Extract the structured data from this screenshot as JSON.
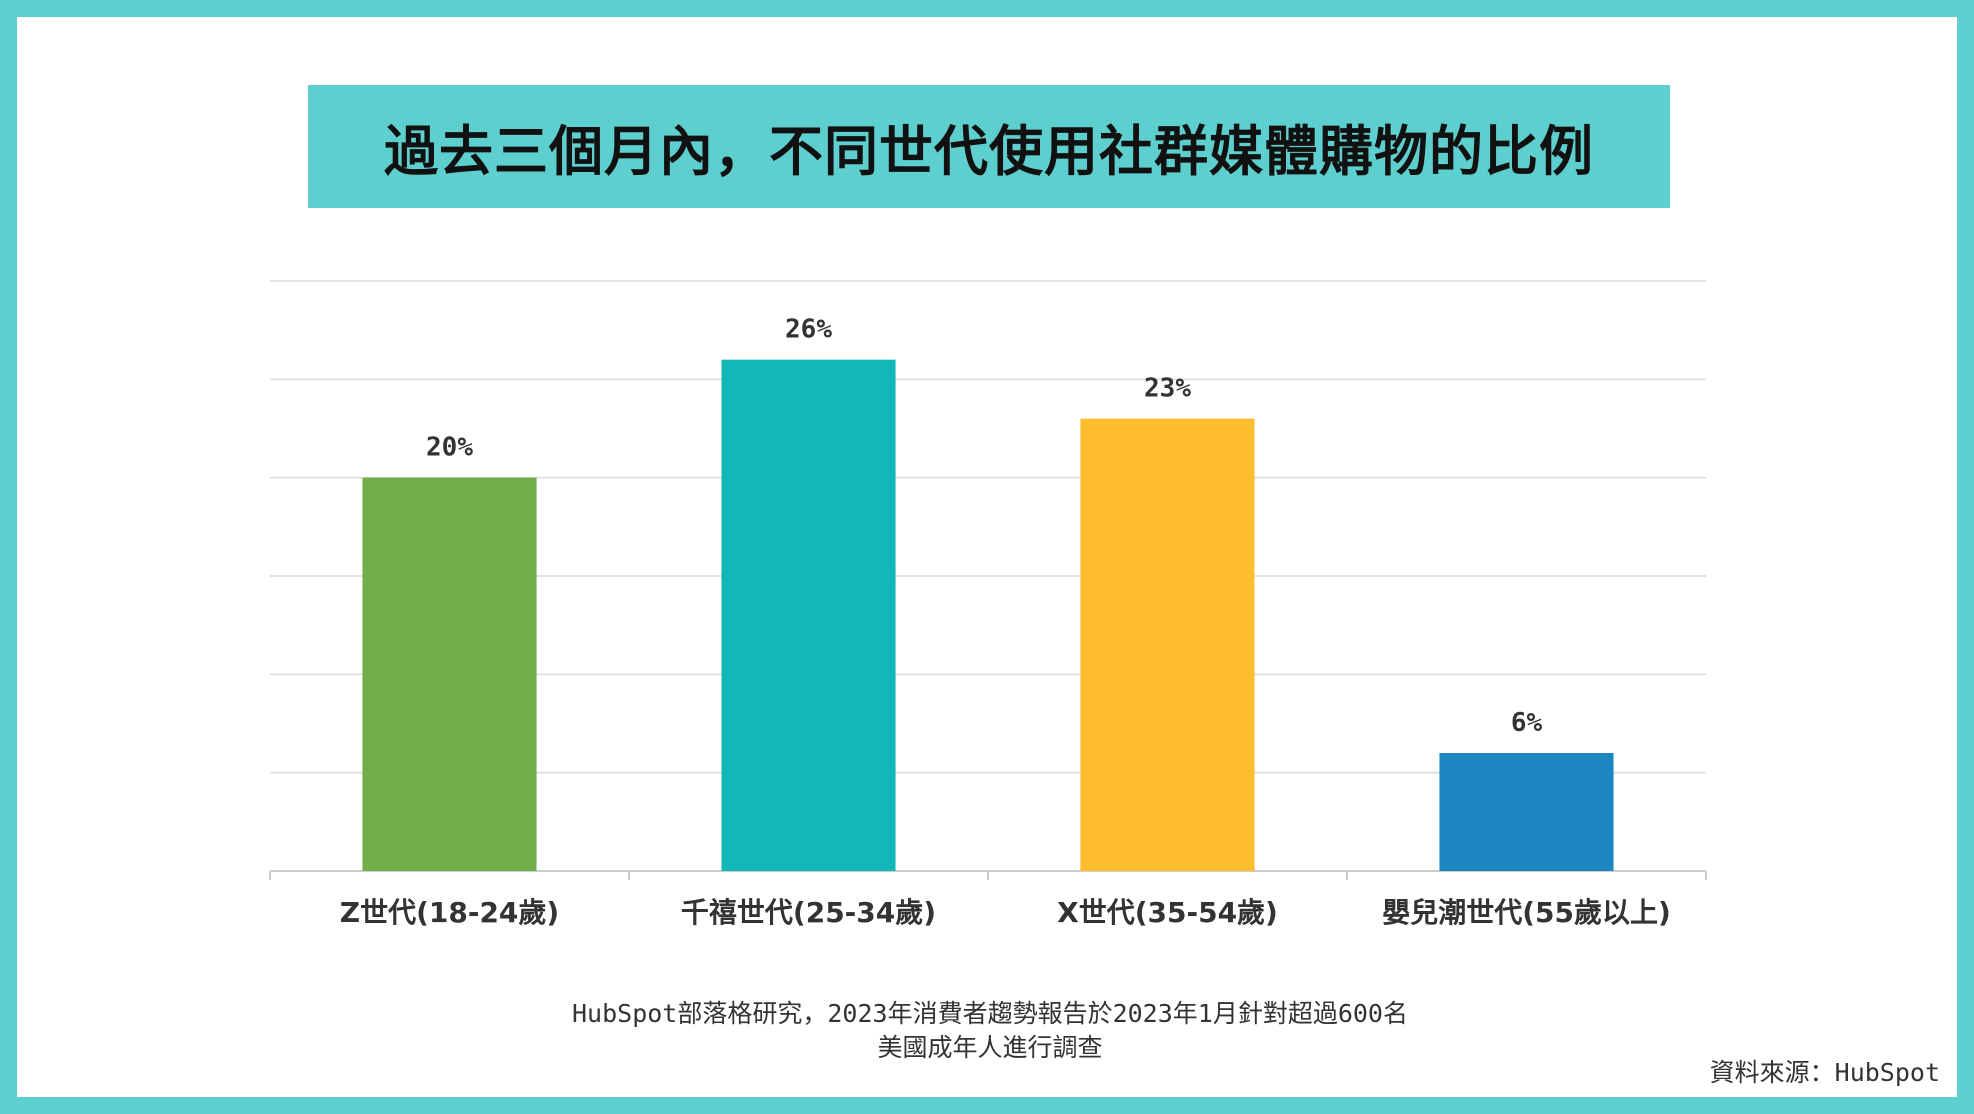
{
  "title": "過去三個月內，不同世代使用社群媒體購物的比例",
  "chart_data": {
    "type": "bar",
    "title": "過去三個月內，不同世代使用社群媒體購物的比例",
    "categories": [
      "Z世代(18-24歲)",
      "千禧世代(25-34歲)",
      "X世代(35-54歲)",
      "嬰兒潮世代(55歲以上)"
    ],
    "values": [
      20,
      26,
      23,
      6
    ],
    "data_labels": [
      "20%",
      "26%",
      "23%",
      "6%"
    ],
    "colors": [
      "#72ad4c",
      "#12b7b7",
      "#fdbd2c",
      "#1b86bf"
    ],
    "ylim": [
      0,
      30
    ],
    "gridlines": true,
    "xlabel": "",
    "ylabel": ""
  },
  "note_lines": [
    "HubSpot部落格研究，2023年消費者趨勢報告於2023年1月針對超過600名",
    "美國成年人進行調查"
  ],
  "source": "資料來源：HubSpot"
}
